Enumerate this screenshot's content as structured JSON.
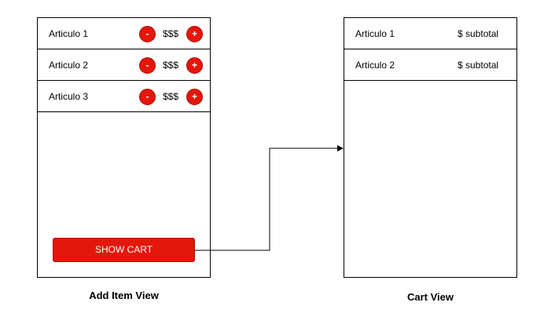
{
  "add_view": {
    "caption": "Add Item View",
    "items": [
      {
        "label": "Articulo 1",
        "minus": "-",
        "price": "$$$",
        "plus": "+"
      },
      {
        "label": "Articulo 2",
        "minus": "-",
        "price": "$$$",
        "plus": "+"
      },
      {
        "label": "Articulo 3",
        "minus": "-",
        "price": "$$$",
        "plus": "+"
      }
    ],
    "show_cart_label": "SHOW CART"
  },
  "cart_view": {
    "caption": "Cart View",
    "items": [
      {
        "label": "Articulo 1",
        "subtotal": "$ subtotal"
      },
      {
        "label": "Articulo 2",
        "subtotal": "$ subtotal"
      }
    ]
  },
  "colors": {
    "accent": "#e3170a",
    "line": "#000000"
  },
  "icons": {
    "minus": "minus-icon",
    "plus": "plus-icon",
    "arrow": "arrow-right-icon"
  }
}
